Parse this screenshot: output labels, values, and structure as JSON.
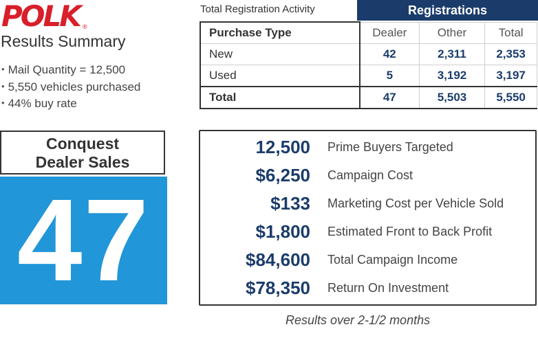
{
  "brand": {
    "logo_text": "POLK",
    "reg_mark": "®"
  },
  "summary": {
    "title": "Results Summary",
    "bullets": [
      "Mail Quantity = 12,500",
      "5,550 vehicles purchased",
      "44% buy rate"
    ]
  },
  "registration": {
    "caption": "Total Registration Activity",
    "group_header": "Registrations",
    "columns": [
      "Purchase Type",
      "Dealer",
      "Other",
      "Total"
    ],
    "rows": [
      {
        "type": "New",
        "dealer": "42",
        "other": "2,311",
        "total": "2,353"
      },
      {
        "type": "Used",
        "dealer": "5",
        "other": "3,192",
        "total": "3,197"
      },
      {
        "type": "Total",
        "dealer": "47",
        "other": "5,503",
        "total": "5,550"
      }
    ]
  },
  "conquest": {
    "line1": "Conquest",
    "line2": "Dealer Sales",
    "value": "47"
  },
  "metrics": [
    {
      "value": "12,500",
      "label": "Prime Buyers Targeted"
    },
    {
      "value": "$6,250",
      "label": "Campaign Cost"
    },
    {
      "value": "$133",
      "label": "Marketing Cost per Vehicle Sold"
    },
    {
      "value": "$1,800",
      "label": "Estimated Front to Back Profit"
    },
    {
      "value": "$84,600",
      "label": "Total Campaign Income"
    },
    {
      "value": "$78,350",
      "label": "Return On Investment"
    }
  ],
  "footnote": "Results over 2-1/2 months",
  "colors": {
    "brand_red": "#d81f2a",
    "navy": "#1b3c6b",
    "accent_blue": "#2196d8"
  }
}
